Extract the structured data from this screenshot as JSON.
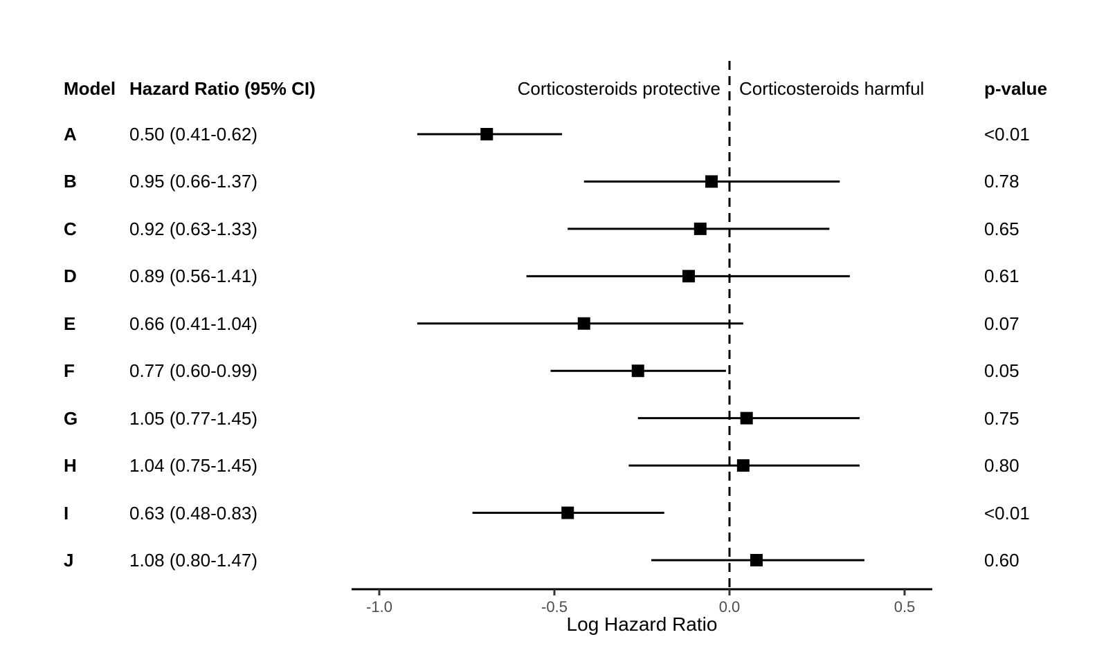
{
  "colors": {
    "background": "#ffffff",
    "text": "#000000",
    "line": "#000000",
    "marker": "#000000",
    "axis_line": "#000000",
    "tick_mark": "#333333",
    "tick_label": "#4d4d4d"
  },
  "table": {
    "model_header": "Model",
    "hr_header": "Hazard Ratio (95% CI)",
    "pvalue_header": "p-value"
  },
  "plot": {
    "protective_label": "Corticosteroids protective",
    "harmful_label": "Corticosteroids harmful",
    "xlabel": "Log Hazard Ratio"
  },
  "chart_data": {
    "type": "forest",
    "title": "",
    "xlabel": "Log Hazard Ratio",
    "x_axis_units": "log hazard ratio",
    "xlim": [
      -1.08,
      0.58
    ],
    "reference_line_x": 0.0,
    "grid": false,
    "legend": false,
    "region_annotations": {
      "left_of_reference": "Corticosteroids protective",
      "right_of_reference": "Corticosteroids harmful"
    },
    "x_ticks": [
      {
        "value": -1.0,
        "label": "-1.0"
      },
      {
        "value": -0.5,
        "label": "-0.5"
      },
      {
        "value": 0.0,
        "label": "0.0"
      },
      {
        "value": 0.5,
        "label": "0.5"
      }
    ],
    "rows": [
      {
        "model": "A",
        "hr": 0.5,
        "ci_low": 0.41,
        "ci_high": 0.62,
        "hr_text": "0.50 (0.41-0.62)",
        "p_value": "<0.01"
      },
      {
        "model": "B",
        "hr": 0.95,
        "ci_low": 0.66,
        "ci_high": 1.37,
        "hr_text": "0.95 (0.66-1.37)",
        "p_value": "0.78"
      },
      {
        "model": "C",
        "hr": 0.92,
        "ci_low": 0.63,
        "ci_high": 1.33,
        "hr_text": "0.92 (0.63-1.33)",
        "p_value": "0.65"
      },
      {
        "model": "D",
        "hr": 0.89,
        "ci_low": 0.56,
        "ci_high": 1.41,
        "hr_text": "0.89 (0.56-1.41)",
        "p_value": "0.61"
      },
      {
        "model": "E",
        "hr": 0.66,
        "ci_low": 0.41,
        "ci_high": 1.04,
        "hr_text": "0.66 (0.41-1.04)",
        "p_value": "0.07"
      },
      {
        "model": "F",
        "hr": 0.77,
        "ci_low": 0.6,
        "ci_high": 0.99,
        "hr_text": "0.77 (0.60-0.99)",
        "p_value": "0.05"
      },
      {
        "model": "G",
        "hr": 1.05,
        "ci_low": 0.77,
        "ci_high": 1.45,
        "hr_text": "1.05 (0.77-1.45)",
        "p_value": "0.75"
      },
      {
        "model": "H",
        "hr": 1.04,
        "ci_low": 0.75,
        "ci_high": 1.45,
        "hr_text": "1.04 (0.75-1.45)",
        "p_value": "0.80"
      },
      {
        "model": "I",
        "hr": 0.63,
        "ci_low": 0.48,
        "ci_high": 0.83,
        "hr_text": "0.63 (0.48-0.83)",
        "p_value": "<0.01"
      },
      {
        "model": "J",
        "hr": 1.08,
        "ci_low": 0.8,
        "ci_high": 1.47,
        "hr_text": "1.08 (0.80-1.47)",
        "p_value": "0.60"
      }
    ]
  }
}
